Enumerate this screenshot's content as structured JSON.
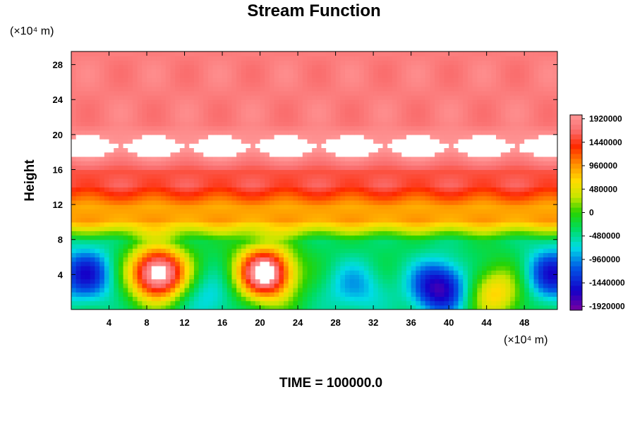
{
  "chart_data": {
    "type": "heatmap",
    "title": "Stream Function",
    "ylabel": "Height",
    "x_unit_label": "(×10⁴ m)",
    "y_unit_label": "(×10⁴ m)",
    "time_label": "TIME = 100000.0",
    "xlim": [
      0,
      51.5
    ],
    "ylim": [
      0,
      29.5
    ],
    "x_ticks": [
      4,
      8,
      12,
      16,
      20,
      24,
      28,
      32,
      36,
      40,
      44,
      48
    ],
    "y_ticks": [
      4,
      8,
      12,
      16,
      20,
      24,
      28
    ],
    "colorbar": {
      "range": [
        -2000000,
        2000000
      ],
      "tick_values": [
        1920000,
        1440000,
        960000,
        480000,
        0,
        -480000,
        -960000,
        -1440000,
        -1920000
      ],
      "tick_labels": [
        "1920000",
        "1440000",
        "960000",
        "480000",
        "0",
        "-480000",
        "-960000",
        "-1440000",
        "-1920000"
      ],
      "out_of_range_color": "#ffffff"
    },
    "field_features": [
      {
        "kind": "background",
        "y_from": 0,
        "y_to": 9,
        "value": -300000
      },
      {
        "kind": "band",
        "y_from": 9,
        "y_to": 13,
        "value": 900000
      },
      {
        "kind": "band",
        "y_from": 13,
        "y_to": 17,
        "value": 1550000
      },
      {
        "kind": "band",
        "y_from": 17,
        "y_to": 20,
        "value": 2100000
      },
      {
        "kind": "band",
        "y_from": 20,
        "y_to": 29.5,
        "value": 1800000
      },
      {
        "kind": "maximum",
        "x": 9.2,
        "y": 4.2,
        "value": 2300000
      },
      {
        "kind": "maximum",
        "x": 20.5,
        "y": 4.2,
        "value": 2300000
      },
      {
        "kind": "minimum",
        "x": 1.5,
        "y": 4.0,
        "value": -1500000
      },
      {
        "kind": "minimum",
        "x": 14.8,
        "y": 1.5,
        "value": -800000
      },
      {
        "kind": "minimum",
        "x": 30.0,
        "y": 2.5,
        "value": -900000
      },
      {
        "kind": "minimum",
        "x": 39.0,
        "y": 2.5,
        "value": -1800000
      },
      {
        "kind": "minimum",
        "x": 51.0,
        "y": 4.0,
        "value": -1500000
      },
      {
        "kind": "maximum",
        "x": 45.0,
        "y": 2.0,
        "value": 700000
      }
    ]
  }
}
